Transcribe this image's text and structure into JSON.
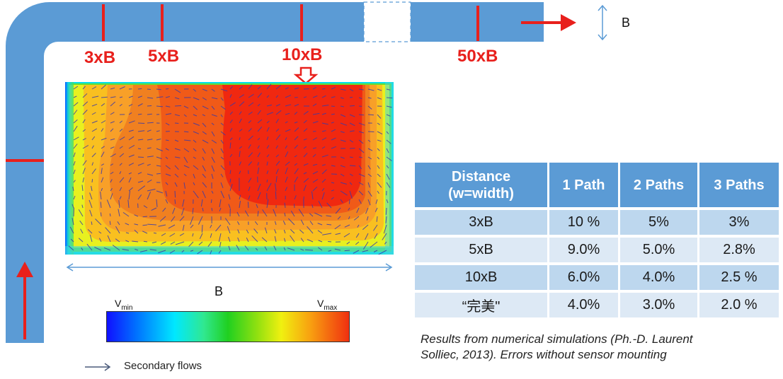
{
  "colors": {
    "duct": "#5b9bd5",
    "marker": "#e8201c",
    "gap_border": "#5b9bd5",
    "scale_arrow": "#5b9bd5",
    "header_bg": "#5b9bd5",
    "row_odd_bg": "#bdd7ee",
    "row_even_bg": "#dde9f5"
  },
  "duct": {
    "width_label": "B",
    "distance_labels": [
      "3xB",
      "5xB",
      "10xB",
      "50xB"
    ]
  },
  "section": {
    "width_label": "B",
    "colorbar_min_label": "V",
    "colorbar_min_sub": "min",
    "colorbar_max_label": "V",
    "colorbar_max_sub": "max",
    "legend_text": "Secondary flows"
  },
  "table": {
    "headers": [
      "Distance (w=width)",
      "1 Path",
      "2 Paths",
      "3 Paths"
    ],
    "rows": [
      [
        "3xB",
        "10 %",
        "5%",
        "3%"
      ],
      [
        "5xB",
        "9.0%",
        "5.0%",
        "2.8%"
      ],
      [
        "10xB",
        "6.0%",
        "4.0%",
        "2.5 %"
      ],
      [
        "“完美\"",
        "4.0%",
        "3.0%",
        "2.0 %"
      ]
    ]
  },
  "caption": {
    "line1": "Results  from numerical simulations (Ph.-D. Laurent",
    "line2": "Solliec, 2013). Errors without sensor mounting"
  }
}
